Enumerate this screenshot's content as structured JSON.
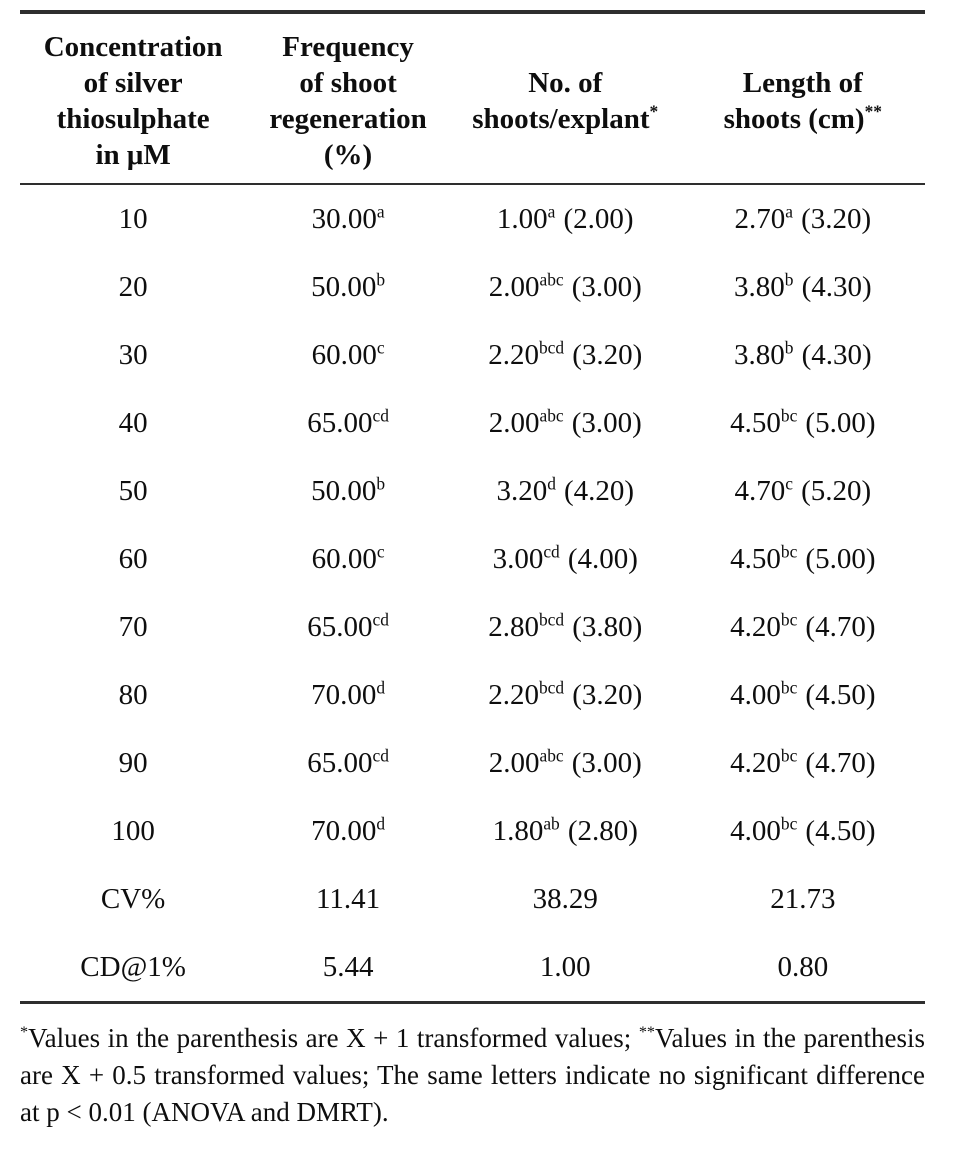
{
  "page": {
    "background": "#ffffff",
    "text_color": "#0e0e0e",
    "rule_color": "#2e2e2e"
  },
  "table": {
    "headers": [
      {
        "text": "Concentration\nof silver\nthiosulphate\nin μM",
        "sup": ""
      },
      {
        "text": "Frequency\nof shoot\nregeneration\n(%)",
        "sup": ""
      },
      {
        "text": "No. of\nshoots/explant",
        "sup": "*"
      },
      {
        "text": "Length of\nshoots (cm)",
        "sup": "**"
      }
    ],
    "rows": [
      {
        "conc": "10",
        "freq": {
          "v": "30.00",
          "s": "a"
        },
        "shoots": {
          "v": "1.00",
          "s": "a",
          "p": "(2.00)"
        },
        "len": {
          "v": "2.70",
          "s": "a",
          "p": "(3.20)"
        }
      },
      {
        "conc": "20",
        "freq": {
          "v": "50.00",
          "s": "b"
        },
        "shoots": {
          "v": "2.00",
          "s": "abc",
          "p": "(3.00)"
        },
        "len": {
          "v": "3.80",
          "s": "b",
          "p": "(4.30)"
        }
      },
      {
        "conc": "30",
        "freq": {
          "v": "60.00",
          "s": "c"
        },
        "shoots": {
          "v": "2.20",
          "s": "bcd",
          "p": "(3.20)"
        },
        "len": {
          "v": "3.80",
          "s": "b",
          "p": "(4.30)"
        }
      },
      {
        "conc": "40",
        "freq": {
          "v": "65.00",
          "s": "cd"
        },
        "shoots": {
          "v": "2.00",
          "s": "abc",
          "p": "(3.00)"
        },
        "len": {
          "v": "4.50",
          "s": "bc",
          "p": "(5.00)"
        }
      },
      {
        "conc": "50",
        "freq": {
          "v": "50.00",
          "s": "b"
        },
        "shoots": {
          "v": "3.20",
          "s": "d",
          "p": "(4.20)"
        },
        "len": {
          "v": "4.70",
          "s": "c",
          "p": "(5.20)"
        }
      },
      {
        "conc": "60",
        "freq": {
          "v": "60.00",
          "s": "c"
        },
        "shoots": {
          "v": "3.00",
          "s": "cd",
          "p": "(4.00)"
        },
        "len": {
          "v": "4.50",
          "s": "bc",
          "p": "(5.00)"
        }
      },
      {
        "conc": "70",
        "freq": {
          "v": "65.00",
          "s": "cd"
        },
        "shoots": {
          "v": "2.80",
          "s": "bcd",
          "p": "(3.80)"
        },
        "len": {
          "v": "4.20",
          "s": "bc",
          "p": "(4.70)"
        }
      },
      {
        "conc": "80",
        "freq": {
          "v": "70.00",
          "s": "d"
        },
        "shoots": {
          "v": "2.20",
          "s": "bcd",
          "p": "(3.20)"
        },
        "len": {
          "v": "4.00",
          "s": "bc",
          "p": "(4.50)"
        }
      },
      {
        "conc": "90",
        "freq": {
          "v": "65.00",
          "s": "cd"
        },
        "shoots": {
          "v": "2.00",
          "s": "abc",
          "p": "(3.00)"
        },
        "len": {
          "v": "4.20",
          "s": "bc",
          "p": "(4.70)"
        }
      },
      {
        "conc": "100",
        "freq": {
          "v": "70.00",
          "s": "d"
        },
        "shoots": {
          "v": "1.80",
          "s": "ab",
          "p": "(2.80)"
        },
        "len": {
          "v": "4.00",
          "s": "bc",
          "p": "(4.50)"
        }
      },
      {
        "conc": "CV%",
        "freq": {
          "v": "11.41",
          "s": ""
        },
        "shoots": {
          "v": "38.29",
          "s": "",
          "p": ""
        },
        "len": {
          "v": "21.73",
          "s": "",
          "p": ""
        }
      },
      {
        "conc": "CD@1%",
        "freq": {
          "v": "5.44",
          "s": ""
        },
        "shoots": {
          "v": "1.00",
          "s": "",
          "p": ""
        },
        "len": {
          "v": "0.80",
          "s": "",
          "p": ""
        }
      }
    ]
  },
  "footnote": {
    "note1_sup": "*",
    "note1_text": "Values in the parenthesis are X + 1 transformed values; ",
    "note2_sup": "**",
    "note2_text": "Values in the parenthesis are X + 0.5 transformed values; The same letters indicate no significant difference at p < 0.01 (ANOVA and DMRT)."
  }
}
